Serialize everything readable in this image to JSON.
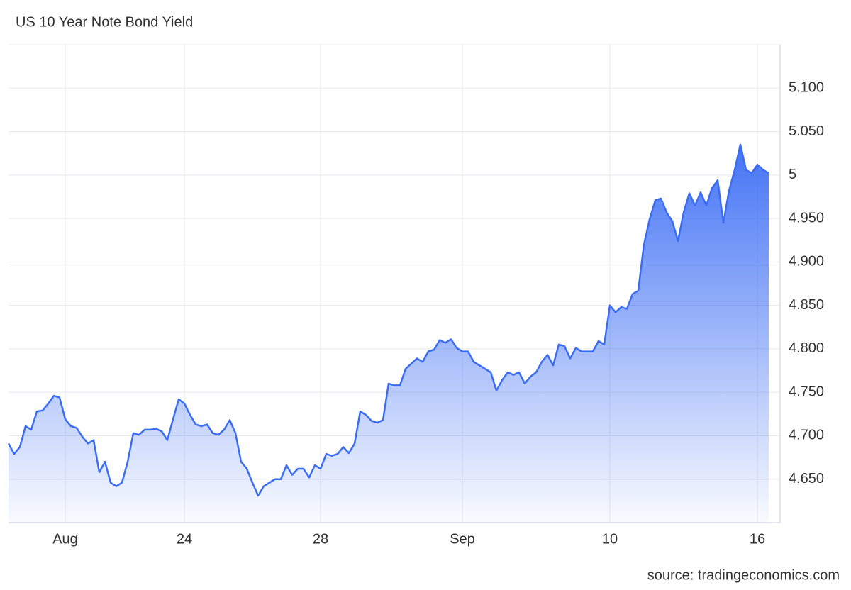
{
  "chart_data": {
    "type": "area",
    "title": "US 10 Year Note Bond Yield",
    "source": "source: tradingeconomics.com",
    "color": "#3a6cf4",
    "grid": true,
    "categories": [
      null,
      null,
      null,
      null,
      null,
      null,
      null,
      null,
      null,
      null,
      "Aug",
      null,
      null,
      null,
      null,
      null,
      null,
      null,
      null,
      null,
      null,
      null,
      null,
      null,
      null,
      null,
      null,
      null,
      null,
      null,
      null,
      "24",
      null,
      null,
      null,
      null,
      null,
      null,
      null,
      null,
      null,
      null,
      null,
      null,
      null,
      null,
      null,
      null,
      null,
      null,
      null,
      null,
      null,
      null,
      null,
      "28",
      null,
      null,
      null,
      null,
      null,
      null,
      null,
      null,
      null,
      null,
      null,
      null,
      null,
      null,
      null,
      null,
      null,
      null,
      null,
      null,
      null,
      null,
      null,
      null,
      "Sep",
      null,
      null,
      null,
      null,
      null,
      null,
      null,
      null,
      null,
      null,
      null,
      null,
      null,
      null,
      null,
      null,
      null,
      null,
      null,
      null,
      null,
      null,
      null,
      null,
      null,
      "10",
      null,
      null,
      null,
      null,
      null,
      null,
      null,
      null,
      null,
      null,
      null,
      null,
      null,
      null,
      null,
      null,
      null,
      null,
      null,
      null,
      null,
      null,
      null,
      null,
      null,
      "16",
      null,
      null
    ],
    "values": [
      4.691,
      4.679,
      4.687,
      4.711,
      4.707,
      4.728,
      4.729,
      4.737,
      4.746,
      4.744,
      4.719,
      4.711,
      4.709,
      4.699,
      4.691,
      4.695,
      4.658,
      4.67,
      4.646,
      4.642,
      4.646,
      4.67,
      4.703,
      4.701,
      4.707,
      4.707,
      4.708,
      4.705,
      4.695,
      4.719,
      4.742,
      4.737,
      4.724,
      4.713,
      4.711,
      4.713,
      4.703,
      4.701,
      4.707,
      4.718,
      4.703,
      4.67,
      4.662,
      4.646,
      4.631,
      4.642,
      4.646,
      4.65,
      4.65,
      4.666,
      4.655,
      4.662,
      4.662,
      4.652,
      4.666,
      4.662,
      4.679,
      4.677,
      4.679,
      4.687,
      4.68,
      4.691,
      4.728,
      4.724,
      4.717,
      4.715,
      4.718,
      4.76,
      4.758,
      4.758,
      4.777,
      4.783,
      4.789,
      4.785,
      4.797,
      4.799,
      4.81,
      4.807,
      4.811,
      4.801,
      4.797,
      4.797,
      4.785,
      4.781,
      4.777,
      4.773,
      4.752,
      4.764,
      4.773,
      4.77,
      4.773,
      4.76,
      4.768,
      4.773,
      4.785,
      4.793,
      4.781,
      4.805,
      4.803,
      4.789,
      4.801,
      4.797,
      4.797,
      4.797,
      4.809,
      4.805,
      4.85,
      4.842,
      4.848,
      4.846,
      4.863,
      4.867,
      4.92,
      4.949,
      4.971,
      4.973,
      4.957,
      4.947,
      4.924,
      4.957,
      4.979,
      4.965,
      4.98,
      4.965,
      4.985,
      4.994,
      4.945,
      4.982,
      5.006,
      5.035,
      5.006,
      5.002,
      5.012,
      5.006,
      5.002
    ],
    "ylim": [
      4.6,
      5.15
    ],
    "yticks": [
      {
        "value": 4.65,
        "label": "4.650"
      },
      {
        "value": 4.7,
        "label": "4.700"
      },
      {
        "value": 4.75,
        "label": "4.750"
      },
      {
        "value": 4.8,
        "label": "4.800"
      },
      {
        "value": 4.85,
        "label": "4.850"
      },
      {
        "value": 4.9,
        "label": "4.900"
      },
      {
        "value": 4.95,
        "label": "4.950"
      },
      5,
      {
        "value": 5.05,
        "label": "5.050"
      },
      {
        "value": 5.1,
        "label": "5.100"
      }
    ]
  }
}
